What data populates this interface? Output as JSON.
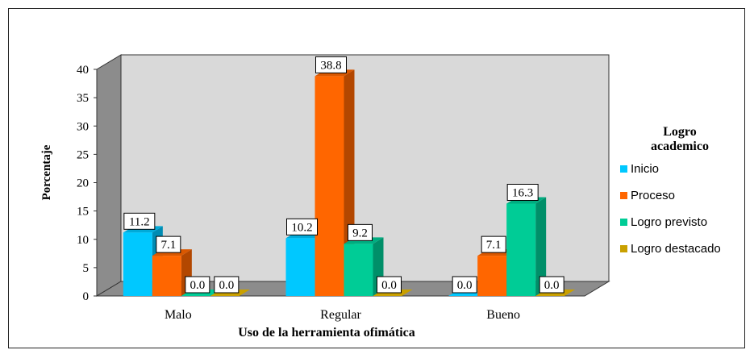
{
  "chart_data": {
    "type": "bar",
    "categories": [
      "Malo",
      "Regular",
      "Bueno"
    ],
    "series": [
      {
        "name": "Inicio",
        "values": [
          11.2,
          10.2,
          0.0
        ],
        "color": "#00C8FF"
      },
      {
        "name": "Proceso",
        "values": [
          7.1,
          38.8,
          7.1
        ],
        "color": "#FF6600"
      },
      {
        "name": "Logro previsto",
        "values": [
          0.0,
          9.2,
          16.3
        ],
        "color": "#00CC96"
      },
      {
        "name": "Logro destacado",
        "values": [
          0.0,
          0.0,
          0.0
        ],
        "color": "#C9A000"
      }
    ],
    "xlabel": "Uso de la herramienta ofimática",
    "ylabel": "Porcentaje",
    "ylim": [
      0,
      40
    ],
    "yticks": [
      0,
      5,
      10,
      15,
      20,
      25,
      30,
      35,
      40
    ],
    "legend_title": "Logro academico",
    "legend_position": "right",
    "grid": false,
    "style": "3d-bar"
  }
}
